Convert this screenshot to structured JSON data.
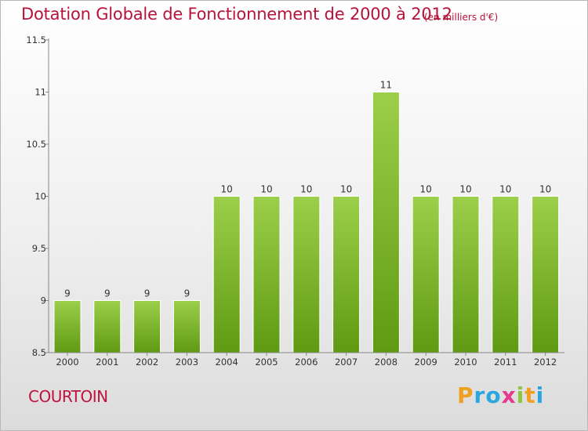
{
  "title": "Dotation Globale de Fonctionnement de 2000 à 2012",
  "subtitle": "(en milliers d'€)",
  "commune": "COURTOIN",
  "logo": {
    "text": "Proxiti",
    "letters": [
      {
        "ch": "P",
        "color": "#f0a020"
      },
      {
        "ch": "r",
        "color": "#2aa7e0"
      },
      {
        "ch": "o",
        "color": "#2aa7e0"
      },
      {
        "ch": "x",
        "color": "#e53a8e"
      },
      {
        "ch": "i",
        "color": "#8dc63f"
      },
      {
        "ch": "t",
        "color": "#f0a020"
      },
      {
        "ch": "i",
        "color": "#2aa7e0"
      }
    ]
  },
  "chart_data": {
    "type": "bar",
    "title": "Dotation Globale de Fonctionnement de 2000 à 2012",
    "categories": [
      "2000",
      "2001",
      "2002",
      "2003",
      "2004",
      "2005",
      "2006",
      "2007",
      "2008",
      "2009",
      "2010",
      "2011",
      "2012"
    ],
    "values": [
      9,
      9,
      9,
      9,
      10,
      10,
      10,
      10,
      11,
      10,
      10,
      10,
      10
    ],
    "data_labels": [
      "9",
      "9",
      "9",
      "9",
      "10",
      "10",
      "10",
      "10",
      "11",
      "10",
      "10",
      "10",
      "10"
    ],
    "ylim": [
      8.5,
      11.5
    ],
    "yticks": [
      8.5,
      9,
      9.5,
      10,
      10.5,
      11,
      11.5
    ],
    "ytick_labels": [
      "8.5",
      "9",
      "9.5",
      "10",
      "10.5",
      "11",
      "11.5"
    ],
    "grid": false,
    "bar_color_top": "#9ccf4a",
    "bar_color_bottom": "#5f9a12"
  }
}
